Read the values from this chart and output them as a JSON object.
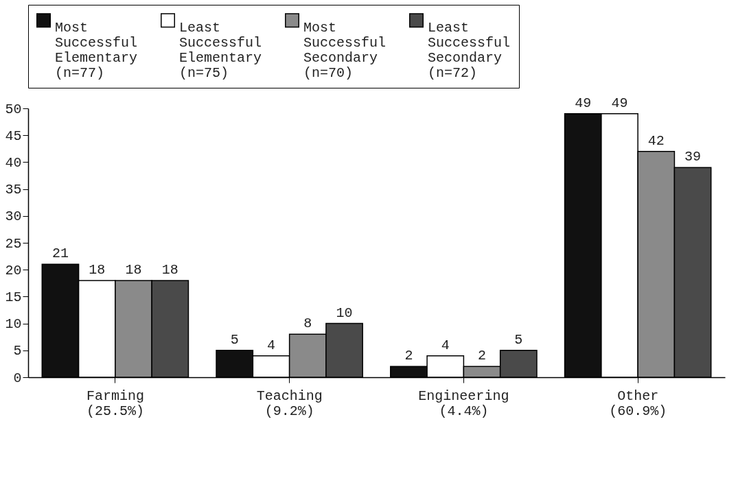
{
  "chart_data": {
    "type": "bar",
    "categories": [
      "Farming\n(25.5%)",
      "Teaching\n(9.2%)",
      "Engineering\n(4.4%)",
      "Other\n(60.9%)"
    ],
    "series": [
      {
        "name": "Most\nSuccessful\nElementary\n(n=77)",
        "color": "#111111",
        "values": [
          21,
          5,
          2,
          49
        ]
      },
      {
        "name": "Least\nSuccessful\nElementary\n(n=75)",
        "color": "#ffffff",
        "values": [
          18,
          4,
          4,
          49
        ]
      },
      {
        "name": "Most\nSuccessful\nSecondary\n(n=70)",
        "color": "#8a8a8a",
        "values": [
          18,
          8,
          2,
          42
        ]
      },
      {
        "name": "Least\nSuccessful\nSecondary\n(n=72)",
        "color": "#4a4a4a",
        "values": [
          18,
          10,
          5,
          39
        ]
      }
    ],
    "ylim": [
      0,
      50
    ],
    "yticks": [
      0,
      5,
      10,
      15,
      20,
      25,
      30,
      35,
      40,
      45,
      50
    ],
    "grid": false,
    "legend": "top",
    "data_labels": true
  }
}
